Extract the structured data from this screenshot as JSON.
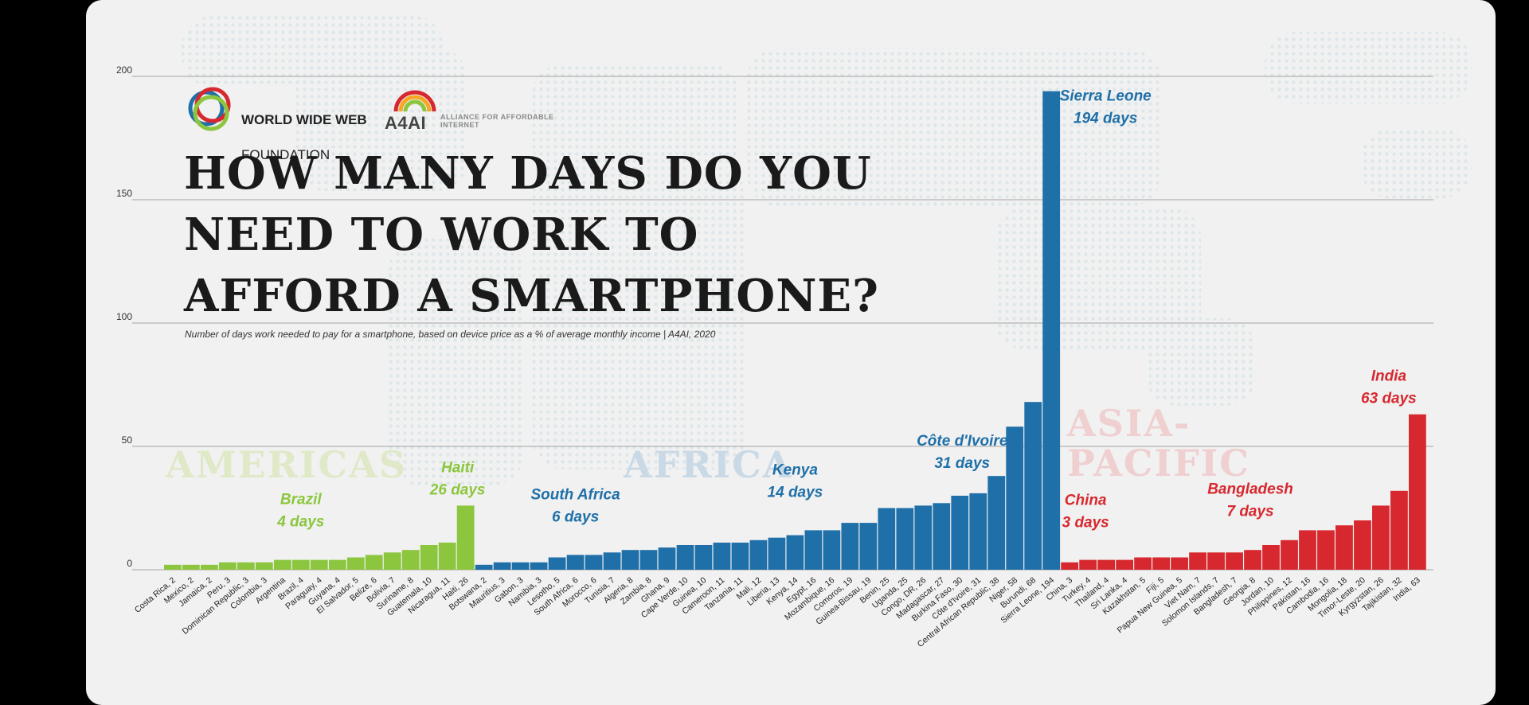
{
  "logos": {
    "wwwf_line1": "WORLD WIDE WEB",
    "wwwf_line2": "FOUNDATION",
    "a4ai": "A4AI",
    "a4ai_sub": "ALLIANCE FOR AFFORDABLE INTERNET"
  },
  "title": "HOW MANY DAYS DO YOU NEED TO WORK TO AFFORD A SMARTPHONE?",
  "subtitle": "Number of days work needed to pay for a smartphone, based on device price as a % of average monthly income | A4AI, 2020",
  "colors": {
    "americas": "#8cc63f",
    "africa": "#1f6fa8",
    "asia_pacific": "#d7282f",
    "americas_watermark": "#dfe9c8",
    "africa_watermark": "#c9d9e6",
    "asia_watermark": "#efcfd0",
    "gridline": "#888888"
  },
  "chart_data": {
    "type": "bar",
    "ylim": [
      0,
      200
    ],
    "yticks": [
      0,
      50,
      100,
      150,
      200
    ],
    "grid": true,
    "region_labels": [
      {
        "name": "AMERICAS",
        "region": "americas"
      },
      {
        "name": "AFRICA",
        "region": "africa"
      },
      {
        "name": "ASIA-\nPACIFIC",
        "region": "asia_pacific"
      }
    ],
    "callouts": [
      {
        "country": "Brazil",
        "text": "Brazil\n4 days"
      },
      {
        "country": "Haiti",
        "text": "Haiti\n26 days"
      },
      {
        "country": "South Africa",
        "text": "South Africa\n6 days"
      },
      {
        "country": "Kenya",
        "text": "Kenya\n14 days"
      },
      {
        "country": "Côte d'Ivoire",
        "text": "Côte d'Ivoire\n31 days"
      },
      {
        "country": "Sierra Leone",
        "text": "Sierra Leone\n194 days"
      },
      {
        "country": "China",
        "text": "China\n3 days"
      },
      {
        "country": "Bangladesh",
        "text": "Bangladesh\n7 days"
      },
      {
        "country": "India",
        "text": "India\n63 days"
      }
    ],
    "bars": [
      {
        "country": "Costa Rica",
        "label": "Costa Rica, 2",
        "value": 2,
        "region": "americas"
      },
      {
        "country": "Mexico",
        "label": "Mexico, 2",
        "value": 2,
        "region": "americas"
      },
      {
        "country": "Jamaica",
        "label": "Jamaica, 2",
        "value": 2,
        "region": "americas"
      },
      {
        "country": "Peru",
        "label": "Peru, 3",
        "value": 3,
        "region": "americas"
      },
      {
        "country": "Dominican Republic",
        "label": "Dominican Republic, 3",
        "value": 3,
        "region": "americas"
      },
      {
        "country": "Colombia",
        "label": "Colombia, 3",
        "value": 3,
        "region": "americas"
      },
      {
        "country": "Argentina",
        "label": "Argentina",
        "value": 4,
        "region": "americas"
      },
      {
        "country": "Brazil",
        "label": "Brazil, 4",
        "value": 4,
        "region": "americas"
      },
      {
        "country": "Paraguay",
        "label": "Paraguay, 4",
        "value": 4,
        "region": "americas"
      },
      {
        "country": "Guyana",
        "label": "Guyana, 4",
        "value": 4,
        "region": "americas"
      },
      {
        "country": "El Salvador",
        "label": "El Salvador, 5",
        "value": 5,
        "region": "americas"
      },
      {
        "country": "Belize",
        "label": "Belize, 6",
        "value": 6,
        "region": "americas"
      },
      {
        "country": "Bolivia",
        "label": "Bolivia, 7",
        "value": 7,
        "region": "americas"
      },
      {
        "country": "Suriname",
        "label": "Suriname, 8",
        "value": 8,
        "region": "americas"
      },
      {
        "country": "Guatemala",
        "label": "Guatemala, 10",
        "value": 10,
        "region": "americas"
      },
      {
        "country": "Nicaragua",
        "label": "Nicaragua, 11",
        "value": 11,
        "region": "americas"
      },
      {
        "country": "Haiti",
        "label": "Haiti, 26",
        "value": 26,
        "region": "americas"
      },
      {
        "country": "Botswana",
        "label": "Botswana, 2",
        "value": 2,
        "region": "africa"
      },
      {
        "country": "Mauritius",
        "label": "Mauritius, 3",
        "value": 3,
        "region": "africa"
      },
      {
        "country": "Gabon",
        "label": "Gabon, 3",
        "value": 3,
        "region": "africa"
      },
      {
        "country": "Namibia",
        "label": "Namibia, 3",
        "value": 3,
        "region": "africa"
      },
      {
        "country": "Lesotho",
        "label": "Lesotho, 5",
        "value": 5,
        "region": "africa"
      },
      {
        "country": "South Africa",
        "label": "South Africa, 6",
        "value": 6,
        "region": "africa"
      },
      {
        "country": "Morocco",
        "label": "Morocco, 6",
        "value": 6,
        "region": "africa"
      },
      {
        "country": "Tunisia",
        "label": "Tunisia, 7",
        "value": 7,
        "region": "africa"
      },
      {
        "country": "Algeria",
        "label": "Algeria, 8",
        "value": 8,
        "region": "africa"
      },
      {
        "country": "Zambia",
        "label": "Zambia, 8",
        "value": 8,
        "region": "africa"
      },
      {
        "country": "Ghana",
        "label": "Ghana, 9",
        "value": 9,
        "region": "africa"
      },
      {
        "country": "Cape Verde",
        "label": "Cape Verde, 10",
        "value": 10,
        "region": "africa"
      },
      {
        "country": "Guinea",
        "label": "Guinea, 10",
        "value": 10,
        "region": "africa"
      },
      {
        "country": "Cameroon",
        "label": "Cameroon, 11",
        "value": 11,
        "region": "africa"
      },
      {
        "country": "Tanzania",
        "label": "Tanzania, 11",
        "value": 11,
        "region": "africa"
      },
      {
        "country": "Mali",
        "label": "Mali, 12",
        "value": 12,
        "region": "africa"
      },
      {
        "country": "Liberia",
        "label": "Liberia, 13",
        "value": 13,
        "region": "africa"
      },
      {
        "country": "Kenya",
        "label": "Kenya, 14",
        "value": 14,
        "region": "africa"
      },
      {
        "country": "Egypt",
        "label": "Egypt, 16",
        "value": 16,
        "region": "africa"
      },
      {
        "country": "Mozambique",
        "label": "Mozambique, 16",
        "value": 16,
        "region": "africa"
      },
      {
        "country": "Comoros",
        "label": "Comoros, 19",
        "value": 19,
        "region": "africa"
      },
      {
        "country": "Guinea-Bissau",
        "label": "Guinea-Bissau, 19",
        "value": 19,
        "region": "africa"
      },
      {
        "country": "Benin",
        "label": "Benin, 25",
        "value": 25,
        "region": "africa"
      },
      {
        "country": "Uganda",
        "label": "Uganda, 25",
        "value": 25,
        "region": "africa"
      },
      {
        "country": "Congo, DR",
        "label": "Congo, DR, 26",
        "value": 26,
        "region": "africa"
      },
      {
        "country": "Madagascar",
        "label": "Madagascar, 27",
        "value": 27,
        "region": "africa"
      },
      {
        "country": "Burkina Faso",
        "label": "Burkina Faso, 30",
        "value": 30,
        "region": "africa"
      },
      {
        "country": "Côte d'Ivoire",
        "label": "Côte d'Ivoire, 31",
        "value": 31,
        "region": "africa"
      },
      {
        "country": "Central African Republic",
        "label": "Central African Republic, 38",
        "value": 38,
        "region": "africa"
      },
      {
        "country": "Niger",
        "label": "Niger, 58",
        "value": 58,
        "region": "africa"
      },
      {
        "country": "Burundi",
        "label": "Burundi, 68",
        "value": 68,
        "region": "africa"
      },
      {
        "country": "Sierra Leone",
        "label": "Sierra Leone, 194",
        "value": 194,
        "region": "africa"
      },
      {
        "country": "China",
        "label": "China, 3",
        "value": 3,
        "region": "asia_pacific"
      },
      {
        "country": "Turkey",
        "label": "Turkey, 4",
        "value": 4,
        "region": "asia_pacific"
      },
      {
        "country": "Thailand",
        "label": "Thailand, 4",
        "value": 4,
        "region": "asia_pacific"
      },
      {
        "country": "Sri Lanka",
        "label": "Sri Lanka, 4",
        "value": 4,
        "region": "asia_pacific"
      },
      {
        "country": "Kazakhstan",
        "label": "Kazakhstan, 5",
        "value": 5,
        "region": "asia_pacific"
      },
      {
        "country": "Fiji",
        "label": "Fiji, 5",
        "value": 5,
        "region": "asia_pacific"
      },
      {
        "country": "Papua New Guinea",
        "label": "Papua New Guinea, 5",
        "value": 5,
        "region": "asia_pacific"
      },
      {
        "country": "Viet Nam",
        "label": "Viet Nam, 7",
        "value": 7,
        "region": "asia_pacific"
      },
      {
        "country": "Solomon Islands",
        "label": "Solomon Islands, 7",
        "value": 7,
        "region": "asia_pacific"
      },
      {
        "country": "Bangladesh",
        "label": "Bangladesh, 7",
        "value": 7,
        "region": "asia_pacific"
      },
      {
        "country": "Georgia",
        "label": "Georgia, 8",
        "value": 8,
        "region": "asia_pacific"
      },
      {
        "country": "Jordan",
        "label": "Jordan, 10",
        "value": 10,
        "region": "asia_pacific"
      },
      {
        "country": "Philippines",
        "label": "Philippines, 12",
        "value": 12,
        "region": "asia_pacific"
      },
      {
        "country": "Pakistan",
        "label": "Pakistan, 16",
        "value": 16,
        "region": "asia_pacific"
      },
      {
        "country": "Cambodia",
        "label": "Cambodia, 16",
        "value": 16,
        "region": "asia_pacific"
      },
      {
        "country": "Mongolia",
        "label": "Mongolia, 18",
        "value": 18,
        "region": "asia_pacific"
      },
      {
        "country": "Timor-Leste",
        "label": "Timor-Leste, 20",
        "value": 20,
        "region": "asia_pacific"
      },
      {
        "country": "Kyrgyzstan",
        "label": "Kyrgyzstan, 26",
        "value": 26,
        "region": "asia_pacific"
      },
      {
        "country": "Tajikistan",
        "label": "Tajikistan, 32",
        "value": 32,
        "region": "asia_pacific"
      },
      {
        "country": "India",
        "label": "India, 63",
        "value": 63,
        "region": "asia_pacific"
      }
    ]
  }
}
